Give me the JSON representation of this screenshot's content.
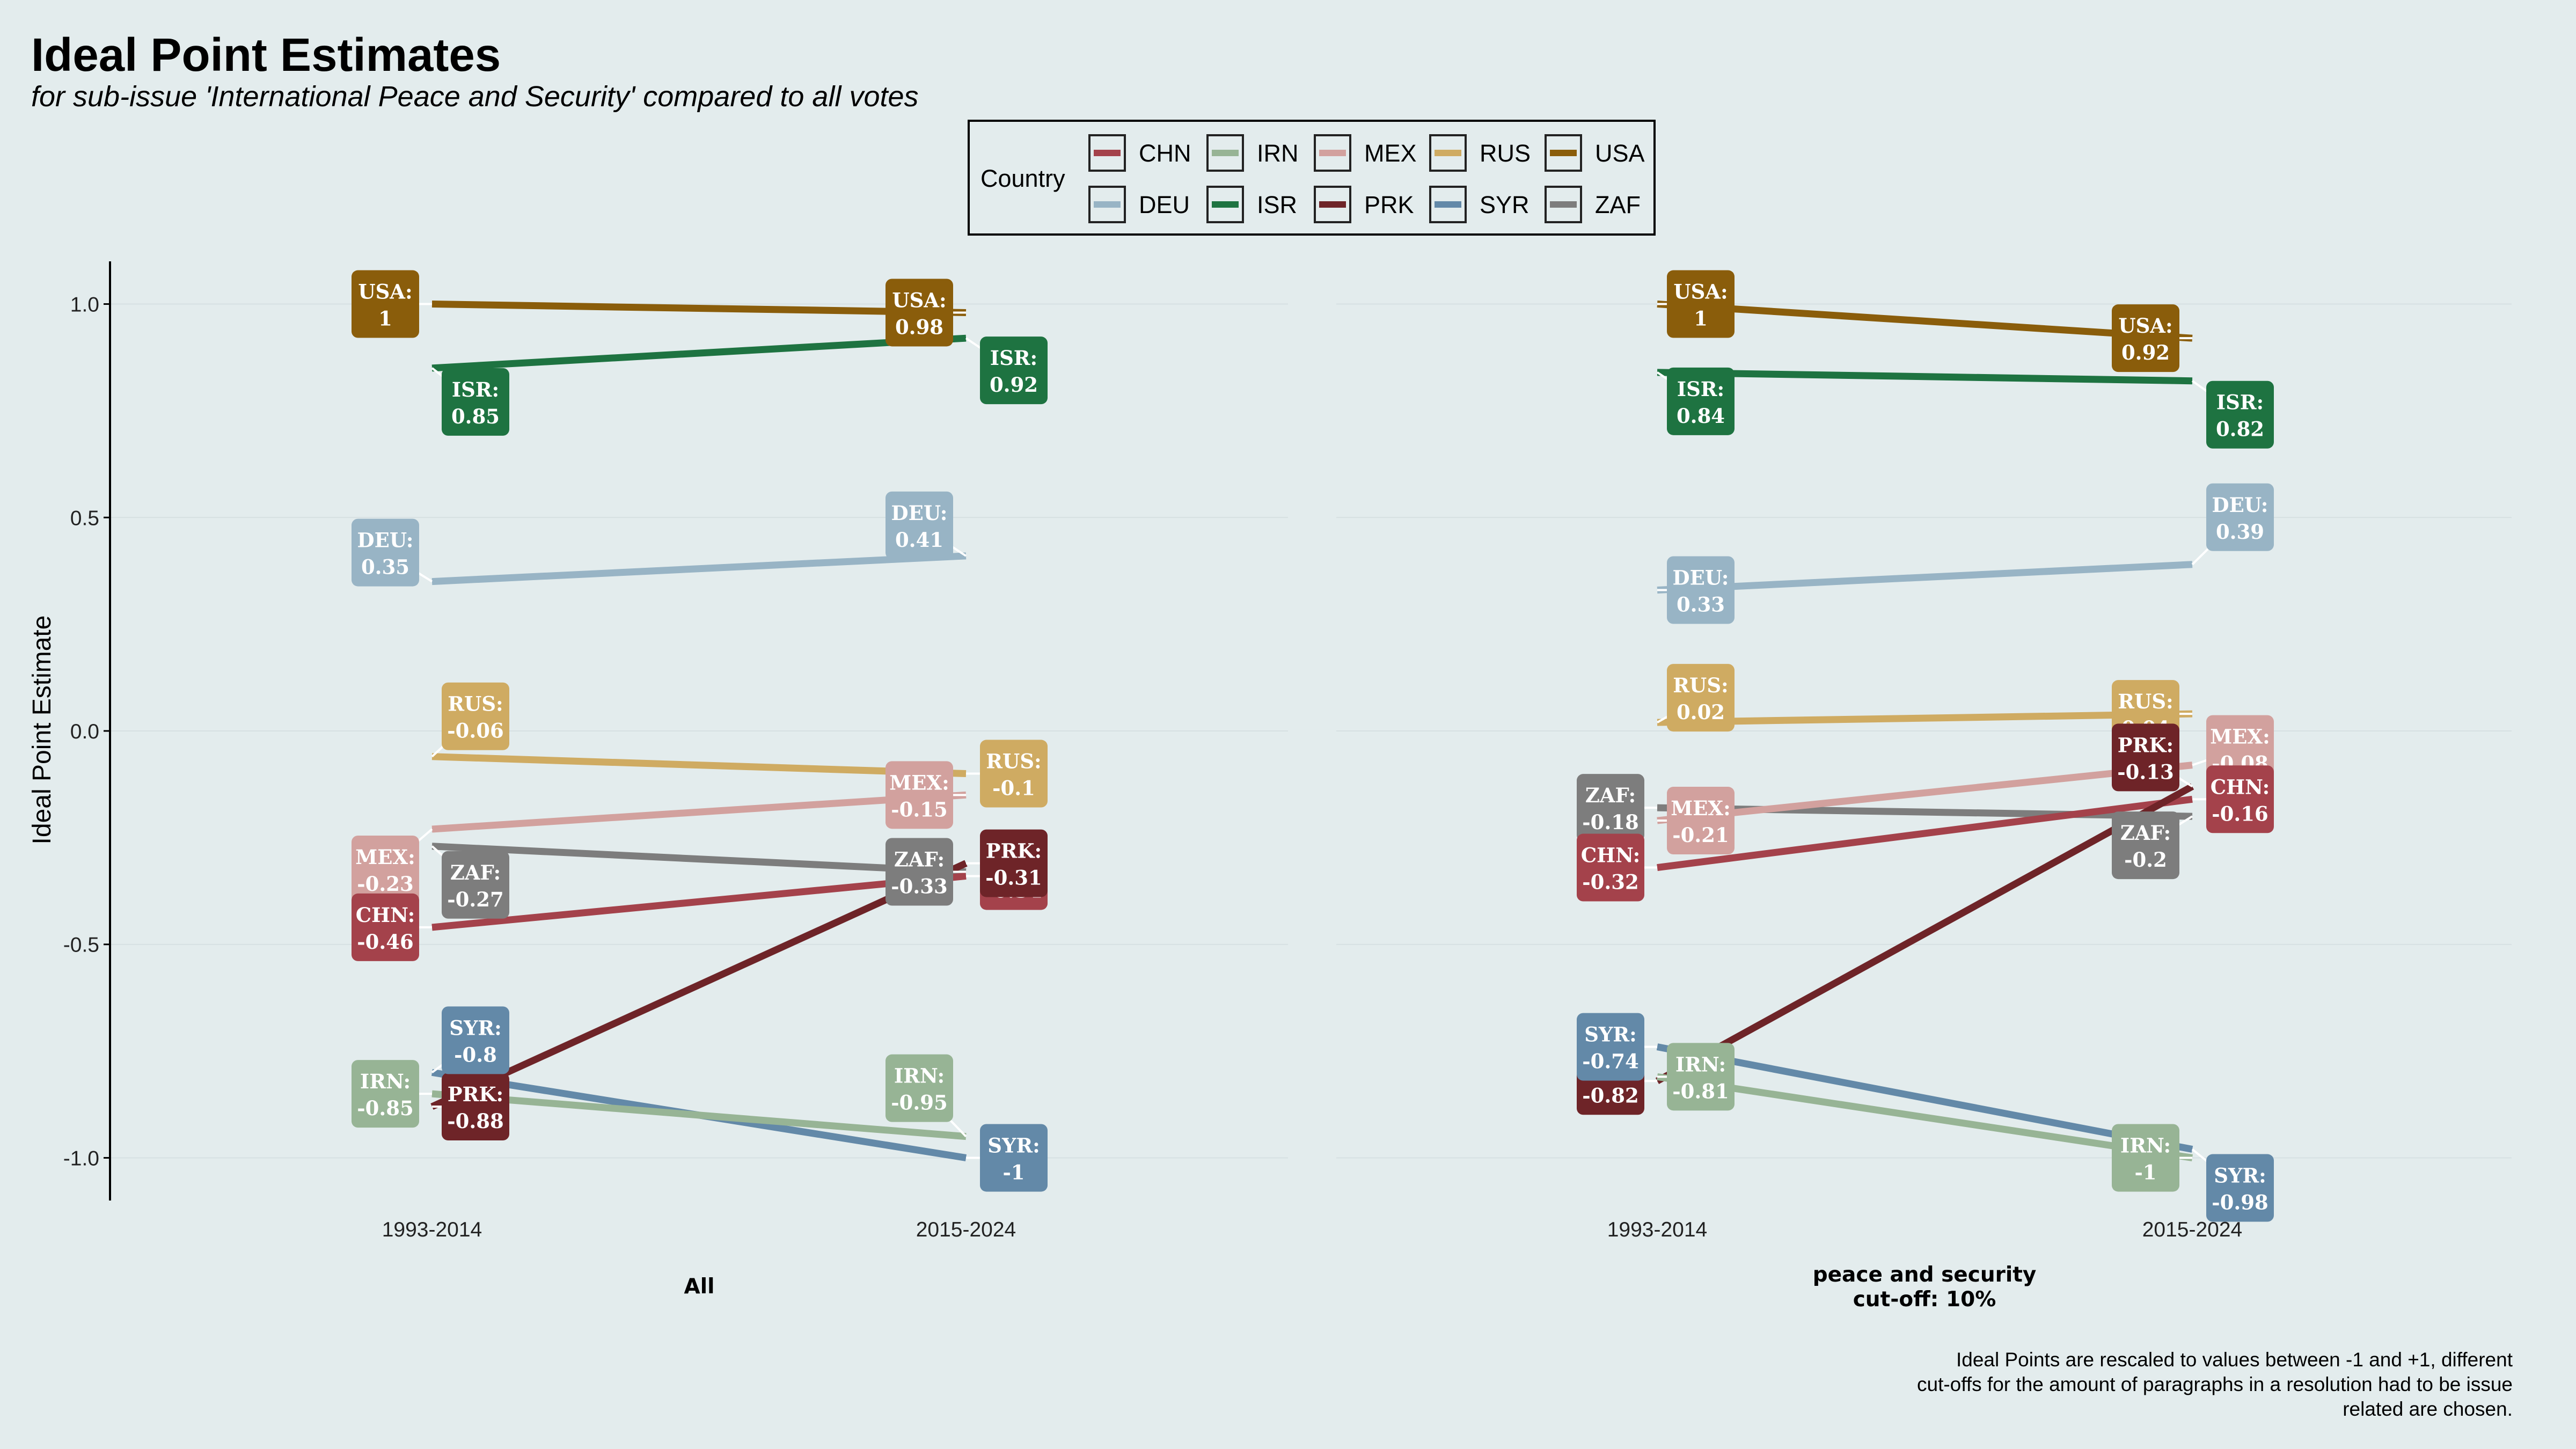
{
  "title": "Ideal Point Estimates",
  "subtitle": "for sub-issue 'International Peace and Security' compared to all votes",
  "caption": [
    "Ideal Points are rescaled to values between -1 and +1, different",
    "cut-offs for the amount of paragraphs in a resolution had to be issue",
    "related are chosen."
  ],
  "legend": {
    "title": "Country",
    "placement": "top",
    "items": [
      {
        "code": "CHN",
        "color": "#A4424B"
      },
      {
        "code": "IRN",
        "color": "#97B495"
      },
      {
        "code": "MEX",
        "color": "#D2A19E"
      },
      {
        "code": "RUS",
        "color": "#CFAB62"
      },
      {
        "code": "USA",
        "color": "#8A5D0B"
      },
      {
        "code": "DEU",
        "color": "#98B4C5"
      },
      {
        "code": "ISR",
        "color": "#1E7341"
      },
      {
        "code": "PRK",
        "color": "#6E2428"
      },
      {
        "code": "SYR",
        "color": "#6389A8"
      },
      {
        "code": "ZAF",
        "color": "#7D7D7D"
      }
    ]
  },
  "chart_data": {
    "type": "line",
    "ylabel": "Ideal Point Estimate",
    "ylim": [
      -1.1,
      1.1
    ],
    "yticks": [
      1.0,
      0.5,
      0.0,
      -0.5,
      -1.0
    ],
    "ytick_labels": [
      "1.0",
      "0.5",
      "0.0",
      "-0.5",
      "-1.0"
    ],
    "x": [
      "1993-2014",
      "2015-2024"
    ],
    "grid": true,
    "panels": [
      {
        "facet": [
          "All"
        ],
        "series": [
          {
            "name": "USA",
            "values": [
              1,
              0.98
            ],
            "labels": [
              "1",
              "0.98"
            ]
          },
          {
            "name": "ISR",
            "values": [
              0.85,
              0.92
            ],
            "labels": [
              "0.85",
              "0.92"
            ]
          },
          {
            "name": "DEU",
            "values": [
              0.35,
              0.41
            ],
            "labels": [
              "0.35",
              "0.41"
            ]
          },
          {
            "name": "RUS",
            "values": [
              -0.06,
              -0.1
            ],
            "labels": [
              "-0.06",
              "-0.1"
            ]
          },
          {
            "name": "MEX",
            "values": [
              -0.23,
              -0.15
            ],
            "labels": [
              "-0.23",
              "-0.15"
            ]
          },
          {
            "name": "ZAF",
            "values": [
              -0.27,
              -0.33
            ],
            "labels": [
              "-0.27",
              "-0.33"
            ]
          },
          {
            "name": "CHN",
            "values": [
              -0.46,
              -0.34
            ],
            "labels": [
              "-0.46",
              "-0.34"
            ]
          },
          {
            "name": "PRK",
            "values": [
              -0.88,
              -0.31
            ],
            "labels": [
              "-0.88",
              "-0.31"
            ]
          },
          {
            "name": "SYR",
            "values": [
              -0.8,
              -1
            ],
            "labels": [
              "-0.8",
              "-1"
            ]
          },
          {
            "name": "IRN",
            "values": [
              -0.85,
              -0.95
            ],
            "labels": [
              "-0.85",
              "-0.95"
            ]
          }
        ]
      },
      {
        "facet": [
          "peace and security",
          "cut-off: 10%"
        ],
        "series": [
          {
            "name": "USA",
            "values": [
              1,
              0.92
            ],
            "labels": [
              "1",
              "0.92"
            ]
          },
          {
            "name": "ISR",
            "values": [
              0.84,
              0.82
            ],
            "labels": [
              "0.84",
              "0.82"
            ]
          },
          {
            "name": "DEU",
            "values": [
              0.33,
              0.39
            ],
            "labels": [
              "0.33",
              "0.39"
            ]
          },
          {
            "name": "RUS",
            "values": [
              0.02,
              0.04
            ],
            "labels": [
              "0.02",
              "0.04"
            ]
          },
          {
            "name": "ZAF",
            "values": [
              -0.18,
              -0.2
            ],
            "labels": [
              "-0.18",
              "-0.2"
            ]
          },
          {
            "name": "MEX",
            "values": [
              -0.21,
              -0.08
            ],
            "labels": [
              "-0.21",
              "-0.08"
            ]
          },
          {
            "name": "CHN",
            "values": [
              -0.32,
              -0.16
            ],
            "labels": [
              "-0.32",
              "-0.16"
            ]
          },
          {
            "name": "PRK",
            "values": [
              -0.82,
              -0.13
            ],
            "labels": [
              "-0.82",
              "-0.13"
            ]
          },
          {
            "name": "SYR",
            "values": [
              -0.74,
              -0.98
            ],
            "labels": [
              "-0.74",
              "-0.98"
            ]
          },
          {
            "name": "IRN",
            "values": [
              -0.81,
              -1
            ],
            "labels": [
              "-0.81",
              "-1"
            ]
          }
        ]
      }
    ]
  }
}
